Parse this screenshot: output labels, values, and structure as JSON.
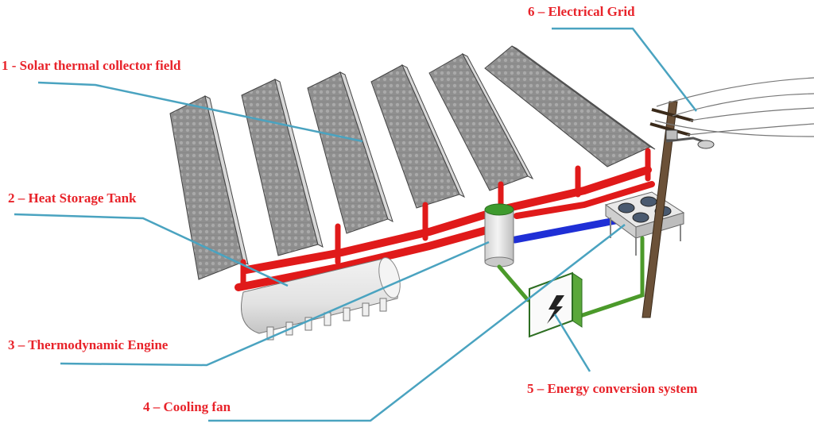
{
  "labels": {
    "solar_field": "1 - Solar thermal collector field",
    "heat_storage": "2 – Heat Storage Tank",
    "thermo_engine": "3 – Thermodynamic Engine",
    "cooling_fan": "4 – Cooling fan",
    "energy_conversion": "5 – Energy conversion system",
    "electrical_grid": "6 – Electrical Grid"
  },
  "colors": {
    "label_text": "#e8232a",
    "leader_line": "#4aa3c0",
    "hot_pipe": "#e01a1a",
    "cold_pipe": "#1f2fd6",
    "electric_line": "#4b9a2a",
    "panel": "#8c8c8c",
    "tank": "#e6e6e6",
    "pole": "#6b5138"
  },
  "icons": {
    "lightning": "lightning-icon"
  }
}
